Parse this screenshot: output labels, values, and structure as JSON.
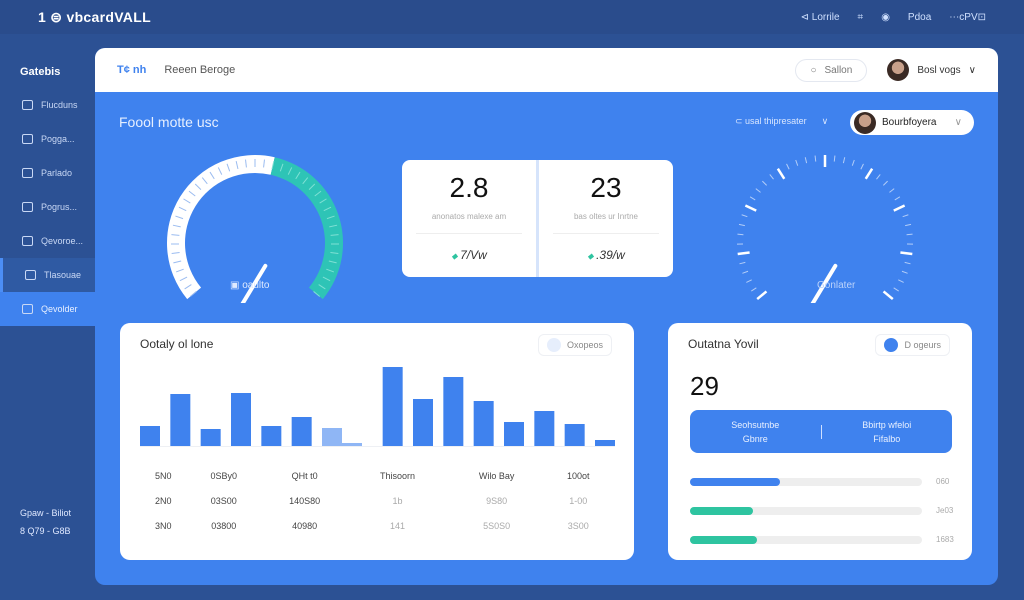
{
  "topbar": {
    "brand": "1 ⊜ vbcardVALL",
    "links": [
      "⊲ Lorrile",
      "⌗",
      "◉",
      "Pdoa",
      "⋯cPV⊡"
    ]
  },
  "sidebar": {
    "logo": "Gatebis",
    "items": [
      {
        "label": "Flucduns",
        "icon": "monitor-icon"
      },
      {
        "label": "Pogga...",
        "icon": "tablet-icon"
      },
      {
        "label": "Parlado",
        "icon": "info-icon"
      },
      {
        "label": "Pogrus...",
        "icon": "card-icon"
      },
      {
        "label": "Qevoroe...",
        "icon": "book-icon"
      },
      {
        "label": "Tlasouae",
        "icon": "panel-icon"
      },
      {
        "label": "Qevolder",
        "icon": "chat-icon"
      }
    ],
    "footer": [
      "Gpaw - Biliot",
      "8 Q79 - G8B"
    ]
  },
  "header": {
    "tab1": "T¢ nh",
    "tab2": "Reeen Beroge",
    "search": "Sallon",
    "user": "Bosl vogs"
  },
  "main": {
    "title": "Foool motte usc",
    "filter": "⊂ usal thipresater",
    "user_pill": "Bourbfoyera",
    "gauge1_label": "oaulto",
    "gauge1_value": 0.72,
    "gauge2_label": "Gonlater",
    "gauge2_value": 0.62,
    "stats": [
      {
        "value": "2.8",
        "label": "anonatos malexe am",
        "change": "7/Vw"
      },
      {
        "value": "23",
        "label": "bas oltes ur Inrtne",
        "change": ".39/w"
      }
    ]
  },
  "chart_card": {
    "title": "Ootaly ol lone",
    "button": "Oxopeos",
    "chart_data": {
      "type": "bar",
      "values": [
        20,
        52,
        17,
        53,
        20,
        29,
        18,
        3,
        79,
        47,
        69,
        45,
        24,
        35,
        22,
        6
      ],
      "ylim": [
        0,
        80
      ],
      "colors": {
        "bar": "#3f82ee",
        "muted": "#8fb6f5"
      }
    },
    "table": [
      [
        "5N0",
        "0SBy0",
        "QHt t0",
        "Thisoorn",
        "Wilo Bay",
        "100ot"
      ],
      [
        "2N0",
        "03S00",
        "140S80",
        "1b",
        "9S80",
        "1-00"
      ],
      [
        "3N0",
        "03800",
        "40980",
        "141",
        "5S0S0",
        "3S00"
      ]
    ]
  },
  "detail_card": {
    "title": "Outatna Yovil",
    "button": "D ogeurs",
    "value": "29",
    "box": [
      {
        "title": "Seohsutnbe",
        "sub": "Gbnre"
      },
      {
        "title": "Bbirtp wfeloi",
        "sub": "Fifalbo"
      }
    ],
    "progress": [
      {
        "value": 0.39,
        "label": "060",
        "color": "#3f82ee"
      },
      {
        "value": 0.27,
        "label": "Je03",
        "color": "#2ec4a0"
      },
      {
        "value": 0.29,
        "label": "1683",
        "color": "#2ec4a0"
      }
    ]
  }
}
